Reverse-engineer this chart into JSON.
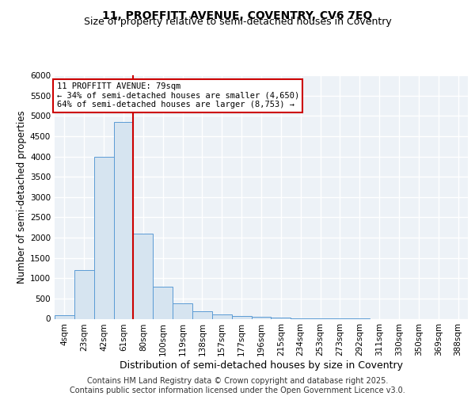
{
  "title_line1": "11, PROFFITT AVENUE, COVENTRY, CV6 7EQ",
  "title_line2": "Size of property relative to semi-detached houses in Coventry",
  "xlabel": "Distribution of semi-detached houses by size in Coventry",
  "ylabel": "Number of semi-detached properties",
  "categories": [
    "4sqm",
    "23sqm",
    "42sqm",
    "61sqm",
    "80sqm",
    "100sqm",
    "119sqm",
    "138sqm",
    "157sqm",
    "177sqm",
    "196sqm",
    "215sqm",
    "234sqm",
    "253sqm",
    "273sqm",
    "292sqm",
    "311sqm",
    "330sqm",
    "350sqm",
    "369sqm",
    "388sqm"
  ],
  "bar_heights": [
    80,
    1200,
    4000,
    4850,
    2100,
    800,
    380,
    195,
    100,
    65,
    40,
    20,
    10,
    5,
    3,
    1,
    0,
    0,
    0,
    0,
    0
  ],
  "bar_color": "#d6e4f0",
  "bar_edge_color": "#5b9bd5",
  "vline_index": 3,
  "property_size": "79sqm",
  "pct_smaller": 34,
  "n_smaller": 4650,
  "pct_larger": 64,
  "n_larger": 8753,
  "vline_color": "#cc0000",
  "annotation_box_color": "#cc0000",
  "ylim": [
    0,
    6000
  ],
  "yticks": [
    0,
    500,
    1000,
    1500,
    2000,
    2500,
    3000,
    3500,
    4000,
    4500,
    5000,
    5500,
    6000
  ],
  "footer_line1": "Contains HM Land Registry data © Crown copyright and database right 2025.",
  "footer_line2": "Contains public sector information licensed under the Open Government Licence v3.0.",
  "background_color": "#edf2f7",
  "grid_color": "#ffffff",
  "title_fontsize": 10,
  "subtitle_fontsize": 9,
  "axis_label_fontsize": 8.5,
  "tick_fontsize": 7.5,
  "annotation_fontsize": 7.5,
  "footer_fontsize": 7
}
